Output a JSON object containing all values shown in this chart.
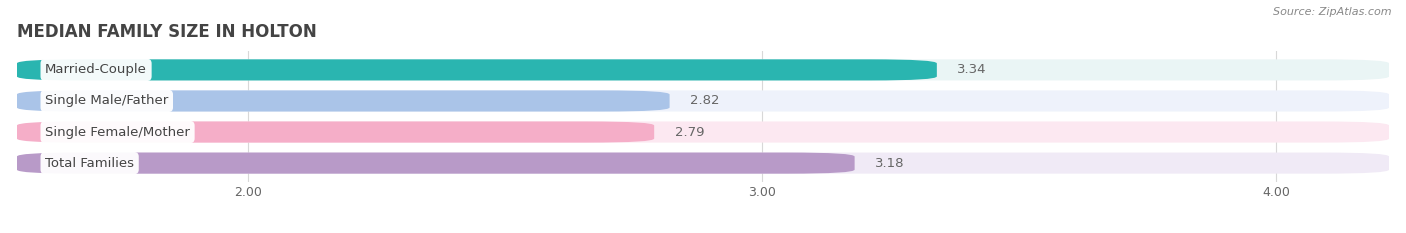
{
  "title": "MEDIAN FAMILY SIZE IN HOLTON",
  "source": "Source: ZipAtlas.com",
  "categories": [
    "Married-Couple",
    "Single Male/Father",
    "Single Female/Mother",
    "Total Families"
  ],
  "values": [
    3.34,
    2.82,
    2.79,
    3.18
  ],
  "bar_colors": [
    "#2ab5b0",
    "#aac4e8",
    "#f5aec8",
    "#b89ac8"
  ],
  "bar_bg_colors": [
    "#eaf5f5",
    "#eef2fb",
    "#fce8f1",
    "#f0eaf6"
  ],
  "xlim": [
    1.55,
    4.22
  ],
  "xticks": [
    2.0,
    3.0,
    4.0
  ],
  "label_fontsize": 9.5,
  "value_fontsize": 9.5,
  "title_fontsize": 12,
  "background_color": "#ffffff",
  "bar_height": 0.68,
  "value_label_color": "#666666",
  "grid_color": "#d8d8d8",
  "label_text_color": "#444444"
}
